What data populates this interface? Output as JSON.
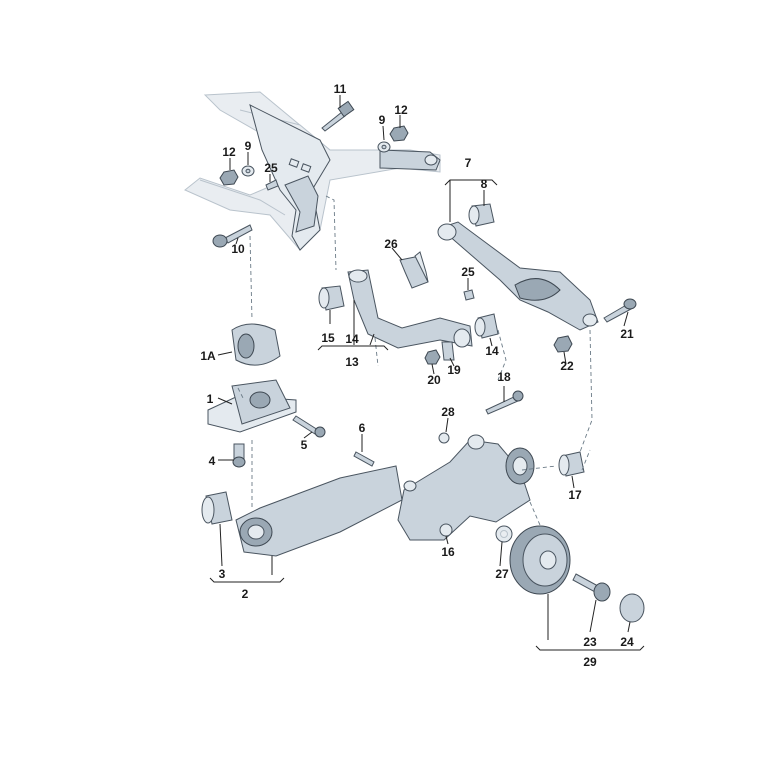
{
  "diagram": {
    "labels": {
      "p1": "1",
      "p1a": "1A",
      "p2": "2",
      "p3": "3",
      "p4": "4",
      "p5": "5",
      "p6": "6",
      "p7": "7",
      "p8": "8",
      "p9a": "9",
      "p9b": "9",
      "p10": "10",
      "p11": "11",
      "p12a": "12",
      "p12b": "12",
      "p13": "13",
      "p14a": "14",
      "p14b": "14",
      "p15": "15",
      "p16": "16",
      "p17": "17",
      "p18": "18",
      "p19": "19",
      "p20": "20",
      "p21": "21",
      "p22": "22",
      "p23": "23",
      "p24": "24",
      "p25a": "25",
      "p25b": "25",
      "p26": "26",
      "p27": "27",
      "p28": "28",
      "p29": "29"
    },
    "colors": {
      "part_fill": "#c9d3dc",
      "part_dark": "#9aa8b4",
      "outline": "#4a5560",
      "leader": "#222222",
      "dashed_guide": "#6a7a86"
    }
  }
}
